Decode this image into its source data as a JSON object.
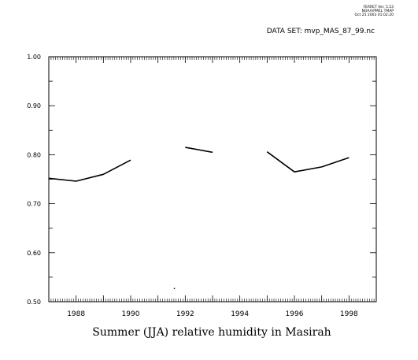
{
  "header": {
    "meta_lines": [
      "FERRET Ver. 5.53",
      "NOAA/PMEL TMAP",
      "Oct 25 2003 01:02:20"
    ],
    "dataset_label": "DATA SET: mvp_MAS_87_99.nc"
  },
  "chart_data": {
    "type": "line",
    "title": "Summer (JJA) relative humidity in Masirah",
    "xlabel": "",
    "ylabel": "",
    "xlim": [
      1987,
      1999
    ],
    "ylim": [
      0.5,
      1.0
    ],
    "x_tick_labels": [
      "1988",
      "1990",
      "1992",
      "1994",
      "1996",
      "1998"
    ],
    "y_tick_labels": [
      "0.50",
      "0.60",
      "0.70",
      "0.80",
      "0.90",
      "1.00"
    ],
    "grid": false,
    "series": [
      {
        "x": [
          1987,
          1988,
          1989,
          1990,
          1991,
          1992,
          1993,
          1994,
          1995,
          1996,
          1997,
          1998
        ],
        "values": [
          0.752,
          0.746,
          0.76,
          0.789,
          null,
          0.815,
          0.805,
          null,
          0.806,
          0.765,
          0.775,
          0.794
        ]
      }
    ],
    "stray_point": {
      "x": 1991.6,
      "y": 0.527
    }
  }
}
